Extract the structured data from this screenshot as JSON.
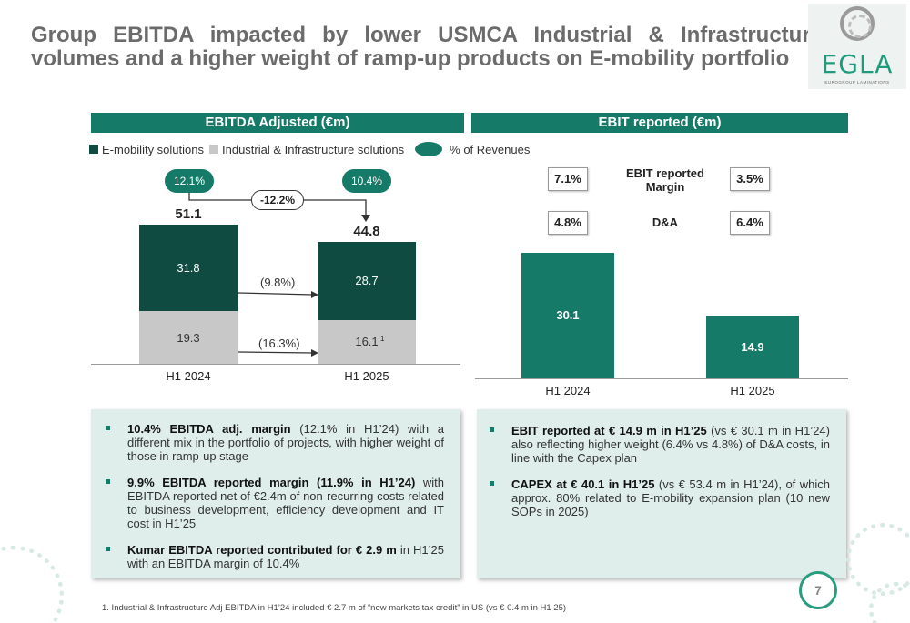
{
  "title": "Group EBITDA impacted by lower USMCA Industrial & Infrastructure volumes and a higher weight of ramp-up products on E-mobility portfolio",
  "logo": {
    "text": "EGLA",
    "subtitle": "EUROGROUP LAMINATIONS"
  },
  "left_panel": {
    "header": "EBITDA Adjusted (€m)",
    "legend": {
      "emobility": "E-mobility solutions",
      "industrial": "Industrial & Infrastructure solutions",
      "revenues": "% of Revenues"
    },
    "margin_2024": "12.1%",
    "margin_2025": "10.4%",
    "delta": "-12.2%",
    "change_emobility": "(9.8%)",
    "change_industrial": "(16.3%)",
    "footnote_mark": "1"
  },
  "right_panel": {
    "header": "EBIT reported (€m)",
    "ebit_margin_label": "EBIT reported Margin",
    "da_label": "D&A",
    "ebit_margin_2024": "7.1%",
    "ebit_margin_2025": "3.5%",
    "da_2024": "4.8%",
    "da_2025": "6.4%"
  },
  "chart_data": [
    {
      "type": "bar",
      "stacked": true,
      "categories": [
        "H1 2024",
        "H1 2025"
      ],
      "series": [
        {
          "name": "Industrial & Infrastructure solutions",
          "values": [
            19.3,
            16.1
          ],
          "labels": [
            "19.3",
            "16.1"
          ],
          "color": "#c8c8c8"
        },
        {
          "name": "E-mobility solutions",
          "values": [
            31.8,
            28.7
          ],
          "labels": [
            "31.8",
            "28.7"
          ],
          "color": "#0f4b40"
        }
      ],
      "totals": [
        "51.1",
        "44.8"
      ],
      "title": "EBITDA Adjusted (€m)",
      "ylim": [
        0,
        60
      ]
    },
    {
      "type": "bar",
      "categories": [
        "H1 2024",
        "H1 2025"
      ],
      "values": [
        30.1,
        14.9
      ],
      "labels": [
        "30.1",
        "14.9"
      ],
      "color": "#167a68",
      "title": "EBIT reported (€m)",
      "ylim": [
        0,
        50
      ]
    }
  ],
  "left_bullets": [
    {
      "bold": "10.4% EBITDA adj. margin",
      "rest": " (12.1% in H1’24) with a different mix in the portfolio of projects, with higher weight of those in ramp-up stage"
    },
    {
      "bold": "9.9% EBITDA reported margin (11.9% in H1’24)",
      "rest": " with EBITDA reported net of €2.4m of non-recurring costs related to business development, efficiency development and IT cost in H1’25"
    },
    {
      "bold": "Kumar EBITDA reported contributed for € 2.9 m",
      "rest": " in H1’25 with an EBITDA margin of 10.4%"
    }
  ],
  "right_bullets": [
    {
      "bold": "EBIT reported at € 14.9 m in H1’25",
      "rest": " (vs € 30.1 m in H1’24) also reflecting higher weight (6.4% vs 4.8%) of D&A costs, in line with the Capex plan"
    },
    {
      "bold": "CAPEX at € 40.1 in H1’25",
      "rest": " (vs € 53.4 m in H1’24), of which approx. 80% related to E-mobility expansion plan (10 new SOPs in 2025)"
    }
  ],
  "page_number": "7",
  "footnote": "1. Industrial & Infrastructure Adj EBITDA in H1’24 included € 2.7 m of “new markets tax credit” in US (vs € 0.4 m in H1 25)",
  "colors": {
    "accent": "#167a68",
    "dark": "#0f4b40",
    "grey": "#c8c8c8",
    "card_bg": "#dfeeeb"
  }
}
